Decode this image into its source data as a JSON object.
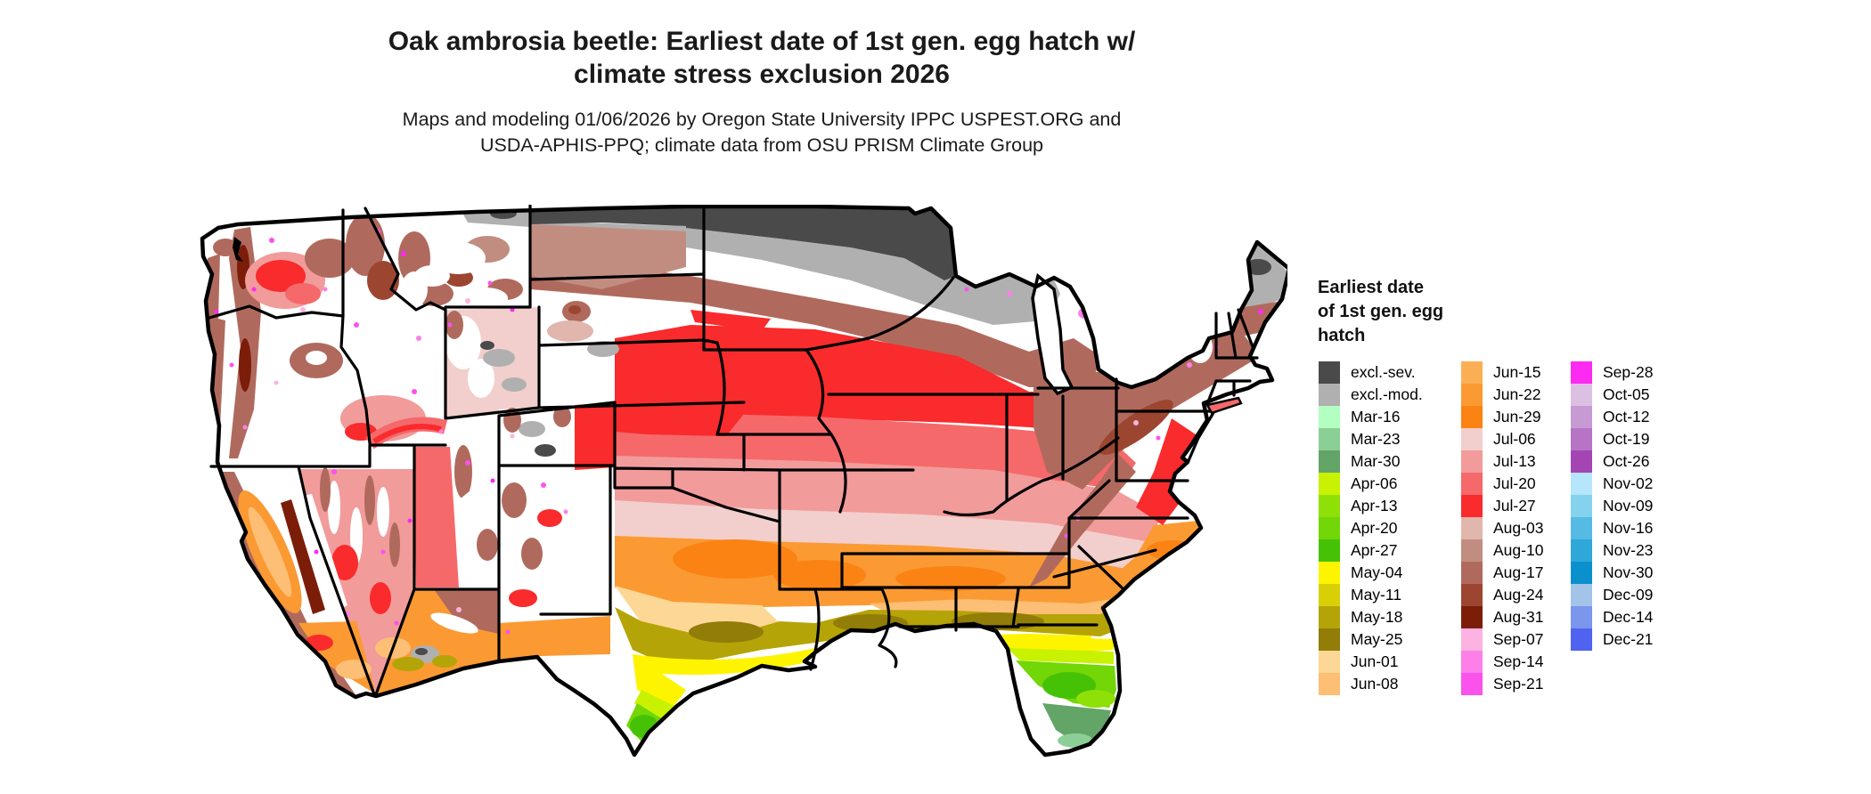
{
  "header": {
    "title_line1": "Oak ambrosia beetle: Earliest date of 1st gen. egg hatch w/",
    "title_line2": "climate stress exclusion 2026",
    "subtitle_line1": "Maps and modeling 01/06/2026 by Oregon State University IPPC USPEST.ORG and",
    "subtitle_line2": "USDA-APHIS-PPQ; climate data from OSU PRISM Climate Group"
  },
  "legend": {
    "title": "Earliest date\nof 1st gen. egg\nhatch",
    "columns": [
      [
        {
          "label": "excl.-sev.",
          "color": "#4a4a4a"
        },
        {
          "label": "excl.-mod.",
          "color": "#b0b0b0"
        },
        {
          "label": "Mar-16",
          "color": "#b3ffc2"
        },
        {
          "label": "Mar-23",
          "color": "#8ccf96"
        },
        {
          "label": "Mar-30",
          "color": "#63a567"
        },
        {
          "label": "Apr-06",
          "color": "#c8f202"
        },
        {
          "label": "Apr-13",
          "color": "#8fe007"
        },
        {
          "label": "Apr-20",
          "color": "#72d607"
        },
        {
          "label": "Apr-27",
          "color": "#46c206"
        },
        {
          "label": "May-04",
          "color": "#fef400"
        },
        {
          "label": "May-11",
          "color": "#d9cf07"
        },
        {
          "label": "May-18",
          "color": "#b5a407"
        },
        {
          "label": "May-25",
          "color": "#917d07"
        },
        {
          "label": "Jun-01",
          "color": "#fcd795"
        },
        {
          "label": "Jun-08",
          "color": "#fdbe75"
        }
      ],
      [
        {
          "label": "Jun-15",
          "color": "#fbaf55"
        },
        {
          "label": "Jun-22",
          "color": "#fb9a33"
        },
        {
          "label": "Jun-29",
          "color": "#fb8314"
        },
        {
          "label": "Jul-06",
          "color": "#f2cfcc"
        },
        {
          "label": "Jul-13",
          "color": "#f29b9b"
        },
        {
          "label": "Jul-20",
          "color": "#f5696b"
        },
        {
          "label": "Jul-27",
          "color": "#f92b2d"
        },
        {
          "label": "Aug-03",
          "color": "#e0b6ad"
        },
        {
          "label": "Aug-10",
          "color": "#c18d80"
        },
        {
          "label": "Aug-17",
          "color": "#b06a5d"
        },
        {
          "label": "Aug-24",
          "color": "#9c4631"
        },
        {
          "label": "Aug-31",
          "color": "#7c1d09"
        },
        {
          "label": "Sep-07",
          "color": "#fcb3e1"
        },
        {
          "label": "Sep-14",
          "color": "#fc80e8"
        },
        {
          "label": "Sep-21",
          "color": "#fc52ec"
        }
      ],
      [
        {
          "label": "Sep-28",
          "color": "#fd2bf1"
        },
        {
          "label": "Oct-05",
          "color": "#dcc0e4"
        },
        {
          "label": "Oct-12",
          "color": "#c79ad3"
        },
        {
          "label": "Oct-19",
          "color": "#b774c4"
        },
        {
          "label": "Oct-26",
          "color": "#a346b4"
        },
        {
          "label": "Nov-02",
          "color": "#b5e6fb"
        },
        {
          "label": "Nov-09",
          "color": "#85d2ef"
        },
        {
          "label": "Nov-16",
          "color": "#55bbe4"
        },
        {
          "label": "Nov-23",
          "color": "#2fa7d8"
        },
        {
          "label": "Nov-30",
          "color": "#0a91cd"
        },
        {
          "label": "Dec-09",
          "color": "#a3c3e8"
        },
        {
          "label": "Dec-14",
          "color": "#7a96ed"
        },
        {
          "label": "Dec-21",
          "color": "#4f63f0"
        }
      ]
    ]
  },
  "map": {
    "kind": "Contiguous United States raster map of earliest egg-hatch date, state borders in black, ocean/background white",
    "special_colors": {
      "white": "#ffffff",
      "border": "#000000"
    }
  }
}
